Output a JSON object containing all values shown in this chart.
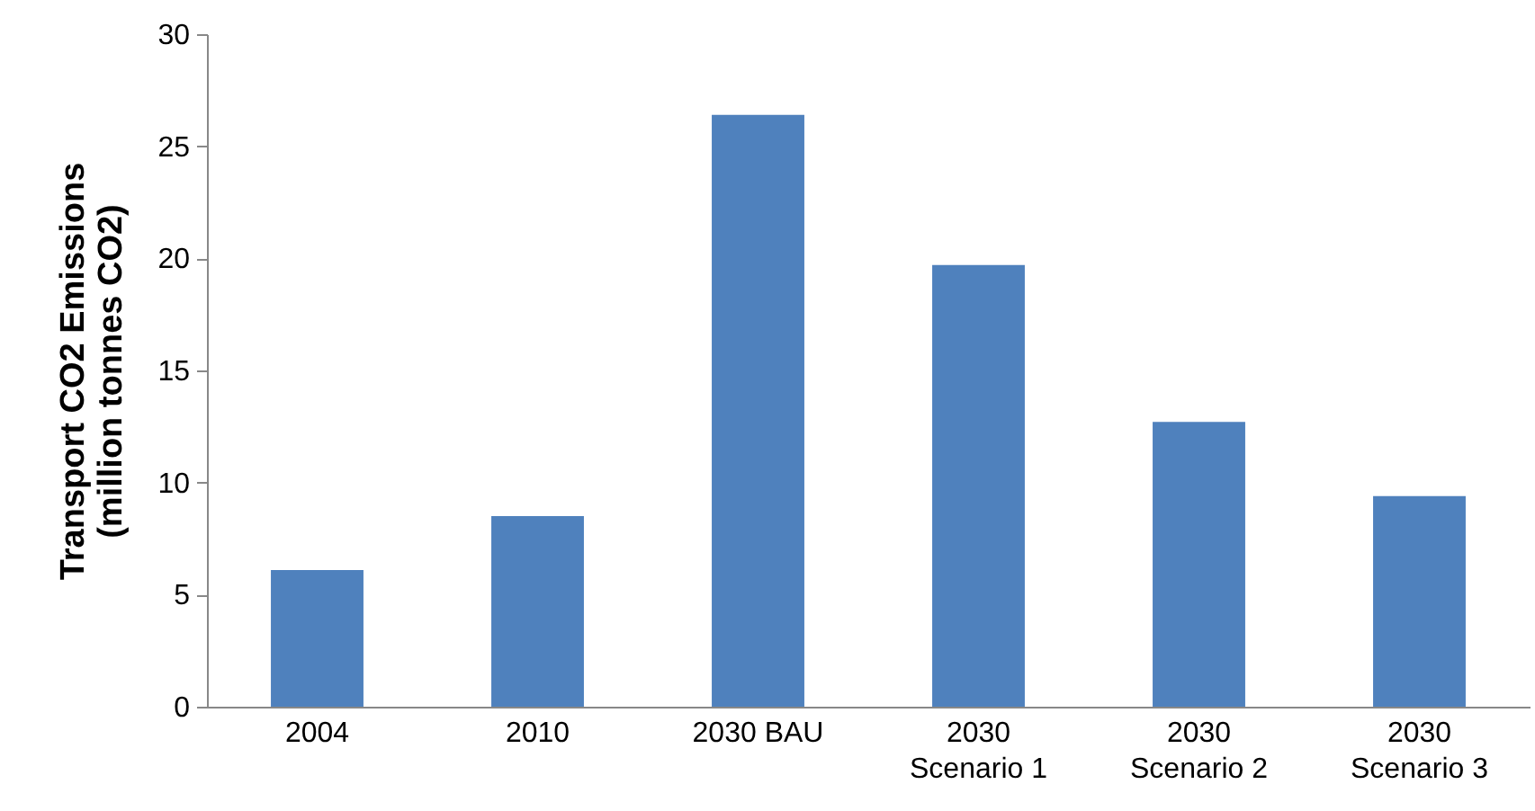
{
  "chart_data": {
    "type": "bar",
    "ylabel": "Transport CO2 Emissions\n(million tonnes CO2)",
    "categories": [
      "2004",
      "2010",
      "2030 BAU",
      "2030\nScenario 1",
      "2030\nScenario 2",
      "2030\nScenario 3"
    ],
    "values": [
      6.1,
      8.5,
      26.4,
      19.7,
      12.7,
      9.4
    ],
    "color": "#4f81bd",
    "ylim": [
      0,
      30
    ],
    "yticks": [
      0,
      5,
      10,
      15,
      20,
      25,
      30
    ],
    "grid": false
  }
}
